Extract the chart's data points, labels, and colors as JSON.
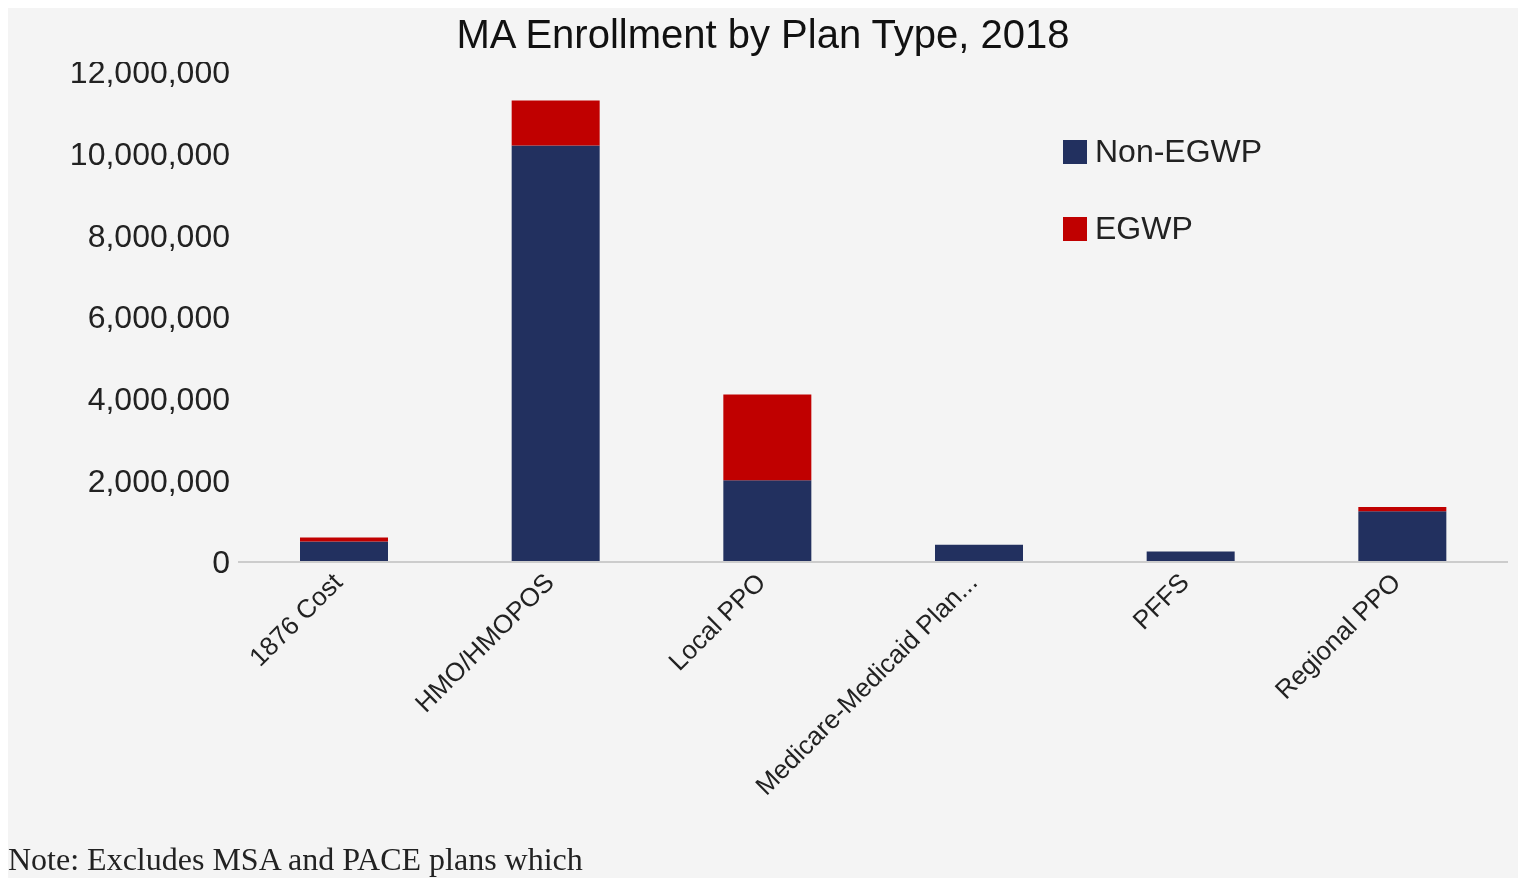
{
  "chart_data": {
    "type": "bar",
    "title": "MA Enrollment by Plan Type, 2018",
    "categories": [
      "1876 Cost",
      "HMO/HMOPOS",
      "Local PPO",
      "Medicare-Medicaid Plan...",
      "PFFS",
      "Regional PPO"
    ],
    "series": [
      {
        "name": "Non-EGWP",
        "color": "#22305f",
        "values": [
          500000,
          10200000,
          2000000,
          420000,
          260000,
          1240000
        ]
      },
      {
        "name": "EGWP",
        "color": "#c00000",
        "values": [
          100000,
          1100000,
          2100000,
          0,
          0,
          110000
        ]
      }
    ],
    "stacked": true,
    "ylim": [
      0,
      12000000
    ],
    "yticks": [
      0,
      {
        "value": 2000000,
        "label": "2,000,000"
      },
      {
        "value": 4000000,
        "label": "4,000,000"
      },
      {
        "value": 6000000,
        "label": "6,000,000"
      },
      {
        "value": 8000000,
        "label": "8,000,000"
      },
      {
        "value": 10000000,
        "label": "10,000,000"
      },
      {
        "value": 12000000,
        "label": "12,000,000"
      }
    ],
    "grid": false,
    "legend": "top right",
    "annotations": [
      "Note: Excludes MSA and PACE plans which"
    ]
  }
}
